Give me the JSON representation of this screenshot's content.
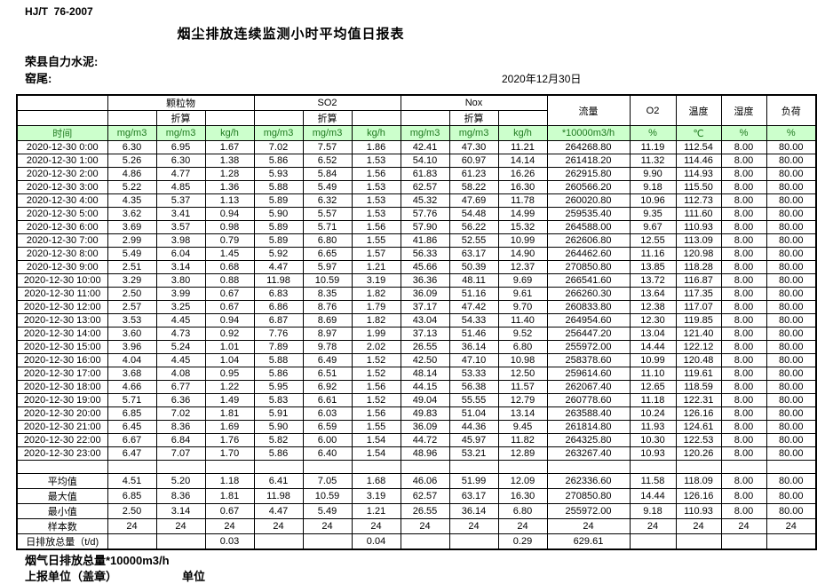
{
  "page": {
    "doc_code": "HJ/T  76-2007",
    "title": "烟尘排放连续监测小时平均值日报表",
    "company": "荣县自力水泥:",
    "site": "窑尾:",
    "date": "2020年12月30日"
  },
  "colors": {
    "unit_row_bg": "#ccffcc",
    "unit_row_text": "#1f7a1f"
  },
  "table": {
    "time_header": "时间",
    "groups": [
      "颗粒物",
      "SO2",
      "Nox"
    ],
    "converted_label": "折算",
    "right_headers": [
      "流量",
      "O2",
      "温度",
      "湿度",
      "负荷"
    ],
    "units": [
      "mg/m3",
      "mg/m3",
      "kg/h",
      "mg/m3",
      "mg/m3",
      "kg/h",
      "mg/m3",
      "mg/m3",
      "kg/h",
      "*10000m3/h",
      "%",
      "℃",
      "%",
      "%"
    ],
    "rows": [
      {
        "t": "2020-12-30 0:00",
        "v": [
          "6.30",
          "6.95",
          "1.67",
          "7.02",
          "7.57",
          "1.86",
          "42.41",
          "47.30",
          "11.21",
          "264268.80",
          "11.19",
          "112.54",
          "8.00",
          "80.00"
        ]
      },
      {
        "t": "2020-12-30 1:00",
        "v": [
          "5.26",
          "6.30",
          "1.38",
          "5.86",
          "6.52",
          "1.53",
          "54.10",
          "60.97",
          "14.14",
          "261418.20",
          "11.32",
          "114.46",
          "8.00",
          "80.00"
        ]
      },
      {
        "t": "2020-12-30 2:00",
        "v": [
          "4.86",
          "4.77",
          "1.28",
          "5.93",
          "5.84",
          "1.56",
          "61.83",
          "61.23",
          "16.26",
          "262915.80",
          "9.90",
          "114.93",
          "8.00",
          "80.00"
        ]
      },
      {
        "t": "2020-12-30 3:00",
        "v": [
          "5.22",
          "4.85",
          "1.36",
          "5.88",
          "5.49",
          "1.53",
          "62.57",
          "58.22",
          "16.30",
          "260566.20",
          "9.18",
          "115.50",
          "8.00",
          "80.00"
        ]
      },
      {
        "t": "2020-12-30 4:00",
        "v": [
          "4.35",
          "5.37",
          "1.13",
          "5.89",
          "6.32",
          "1.53",
          "45.32",
          "47.69",
          "11.78",
          "260020.80",
          "10.96",
          "112.73",
          "8.00",
          "80.00"
        ]
      },
      {
        "t": "2020-12-30 5:00",
        "v": [
          "3.62",
          "3.41",
          "0.94",
          "5.90",
          "5.57",
          "1.53",
          "57.76",
          "54.48",
          "14.99",
          "259535.40",
          "9.35",
          "111.60",
          "8.00",
          "80.00"
        ]
      },
      {
        "t": "2020-12-30 6:00",
        "v": [
          "3.69",
          "3.57",
          "0.98",
          "5.89",
          "5.71",
          "1.56",
          "57.90",
          "56.22",
          "15.32",
          "264588.00",
          "9.67",
          "110.93",
          "8.00",
          "80.00"
        ]
      },
      {
        "t": "2020-12-30 7:00",
        "v": [
          "2.99",
          "3.98",
          "0.79",
          "5.89",
          "6.80",
          "1.55",
          "41.86",
          "52.55",
          "10.99",
          "262606.80",
          "12.55",
          "113.09",
          "8.00",
          "80.00"
        ]
      },
      {
        "t": "2020-12-30 8:00",
        "v": [
          "5.49",
          "6.04",
          "1.45",
          "5.92",
          "6.65",
          "1.57",
          "56.33",
          "63.17",
          "14.90",
          "264462.60",
          "11.16",
          "120.98",
          "8.00",
          "80.00"
        ]
      },
      {
        "t": "2020-12-30 9:00",
        "v": [
          "2.51",
          "3.14",
          "0.68",
          "4.47",
          "5.97",
          "1.21",
          "45.66",
          "50.39",
          "12.37",
          "270850.80",
          "13.85",
          "118.28",
          "8.00",
          "80.00"
        ]
      },
      {
        "t": "2020-12-30 10:00",
        "v": [
          "3.29",
          "3.80",
          "0.88",
          "11.98",
          "10.59",
          "3.19",
          "36.36",
          "48.11",
          "9.69",
          "266541.60",
          "13.72",
          "116.87",
          "8.00",
          "80.00"
        ]
      },
      {
        "t": "2020-12-30 11:00",
        "v": [
          "2.50",
          "3.99",
          "0.67",
          "6.83",
          "8.35",
          "1.82",
          "36.09",
          "51.16",
          "9.61",
          "266260.30",
          "13.64",
          "117.35",
          "8.00",
          "80.00"
        ]
      },
      {
        "t": "2020-12-30 12:00",
        "v": [
          "2.57",
          "3.25",
          "0.67",
          "6.86",
          "8.76",
          "1.79",
          "37.17",
          "47.42",
          "9.70",
          "260833.80",
          "12.38",
          "117.07",
          "8.00",
          "80.00"
        ]
      },
      {
        "t": "2020-12-30 13:00",
        "v": [
          "3.53",
          "4.45",
          "0.94",
          "6.87",
          "8.69",
          "1.82",
          "43.04",
          "54.33",
          "11.40",
          "264954.60",
          "12.30",
          "119.85",
          "8.00",
          "80.00"
        ]
      },
      {
        "t": "2020-12-30 14:00",
        "v": [
          "3.60",
          "4.73",
          "0.92",
          "7.76",
          "8.97",
          "1.99",
          "37.13",
          "51.46",
          "9.52",
          "256447.20",
          "13.04",
          "121.40",
          "8.00",
          "80.00"
        ]
      },
      {
        "t": "2020-12-30 15:00",
        "v": [
          "3.96",
          "5.24",
          "1.01",
          "7.89",
          "9.78",
          "2.02",
          "26.55",
          "36.14",
          "6.80",
          "255972.00",
          "14.44",
          "122.12",
          "8.00",
          "80.00"
        ]
      },
      {
        "t": "2020-12-30 16:00",
        "v": [
          "4.04",
          "4.45",
          "1.04",
          "5.88",
          "6.49",
          "1.52",
          "42.50",
          "47.10",
          "10.98",
          "258378.60",
          "10.99",
          "120.48",
          "8.00",
          "80.00"
        ]
      },
      {
        "t": "2020-12-30 17:00",
        "v": [
          "3.68",
          "4.08",
          "0.95",
          "5.86",
          "6.51",
          "1.52",
          "48.14",
          "53.33",
          "12.50",
          "259614.60",
          "11.10",
          "119.61",
          "8.00",
          "80.00"
        ]
      },
      {
        "t": "2020-12-30 18:00",
        "v": [
          "4.66",
          "6.77",
          "1.22",
          "5.95",
          "6.92",
          "1.56",
          "44.15",
          "56.38",
          "11.57",
          "262067.40",
          "12.65",
          "118.59",
          "8.00",
          "80.00"
        ]
      },
      {
        "t": "2020-12-30 19:00",
        "v": [
          "5.71",
          "6.36",
          "1.49",
          "5.83",
          "6.61",
          "1.52",
          "49.04",
          "55.55",
          "12.79",
          "260778.60",
          "11.18",
          "122.31",
          "8.00",
          "80.00"
        ]
      },
      {
        "t": "2020-12-30 20:00",
        "v": [
          "6.85",
          "7.02",
          "1.81",
          "5.91",
          "6.03",
          "1.56",
          "49.83",
          "51.04",
          "13.14",
          "263588.40",
          "10.24",
          "126.16",
          "8.00",
          "80.00"
        ]
      },
      {
        "t": "2020-12-30 21:00",
        "v": [
          "6.45",
          "8.36",
          "1.69",
          "5.90",
          "6.59",
          "1.55",
          "36.09",
          "44.36",
          "9.45",
          "261814.80",
          "11.93",
          "124.61",
          "8.00",
          "80.00"
        ]
      },
      {
        "t": "2020-12-30 22:00",
        "v": [
          "6.67",
          "6.84",
          "1.76",
          "5.82",
          "6.00",
          "1.54",
          "44.72",
          "45.97",
          "11.82",
          "264325.80",
          "10.30",
          "122.53",
          "8.00",
          "80.00"
        ]
      },
      {
        "t": "2020-12-30 23:00",
        "v": [
          "6.47",
          "7.07",
          "1.70",
          "5.86",
          "6.40",
          "1.54",
          "48.96",
          "53.21",
          "12.89",
          "263267.40",
          "10.93",
          "120.26",
          "8.00",
          "80.00"
        ]
      }
    ],
    "summary": [
      {
        "label": "平均值",
        "v": [
          "4.51",
          "5.20",
          "1.18",
          "6.41",
          "7.05",
          "1.68",
          "46.06",
          "51.99",
          "12.09",
          "262336.60",
          "11.58",
          "118.09",
          "8.00",
          "80.00"
        ]
      },
      {
        "label": "最大值",
        "v": [
          "6.85",
          "8.36",
          "1.81",
          "11.98",
          "10.59",
          "3.19",
          "62.57",
          "63.17",
          "16.30",
          "270850.80",
          "14.44",
          "126.16",
          "8.00",
          "80.00"
        ]
      },
      {
        "label": "最小值",
        "v": [
          "2.50",
          "3.14",
          "0.67",
          "4.47",
          "5.49",
          "1.21",
          "26.55",
          "36.14",
          "6.80",
          "255972.00",
          "9.18",
          "110.93",
          "8.00",
          "80.00"
        ]
      },
      {
        "label": "样本数",
        "v": [
          "24",
          "24",
          "24",
          "24",
          "24",
          "24",
          "24",
          "24",
          "24",
          "24",
          "24",
          "24",
          "24",
          "24"
        ]
      },
      {
        "label": "日排放总量（t/d)",
        "v": [
          "",
          "",
          "0.03",
          "",
          "",
          "0.04",
          "",
          "",
          "0.29",
          "629.61",
          "",
          "",
          "",
          ""
        ]
      }
    ]
  },
  "footer": {
    "note": "烟气日排放总量*10000m3/h",
    "report_unit": "上报单位（盖章）",
    "unit": "单位"
  }
}
